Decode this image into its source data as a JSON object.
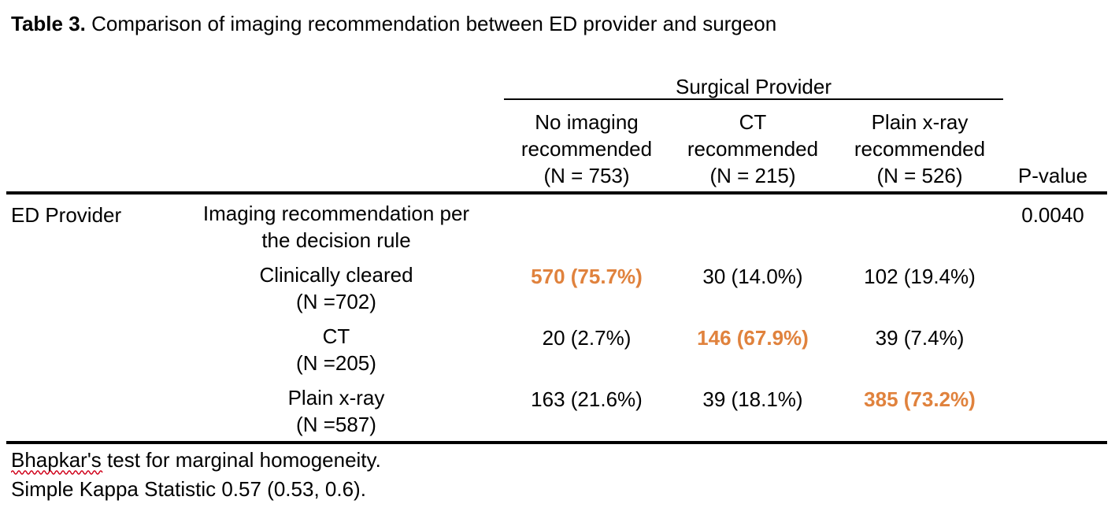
{
  "caption": {
    "label": "Table 3.",
    "text": " Comparison of imaging recommendation between ED provider and surgeon"
  },
  "header": {
    "group_label": "Surgical Provider",
    "columns": [
      {
        "line1": "No imaging",
        "line2": "recommended",
        "line3": "(N = 753)"
      },
      {
        "line1": "CT",
        "line2": "recommended",
        "line3": "(N = 215)"
      },
      {
        "line1": "Plain x-ray",
        "line2": "recommended",
        "line3": "(N = 526)"
      }
    ],
    "pvalue_label": "P-value"
  },
  "body": {
    "row_group": "ED Provider",
    "subheading": {
      "line1": "Imaging recommendation per",
      "line2": "the decision rule"
    },
    "pvalue": "0.0040",
    "rows": [
      {
        "label1": "Clinically cleared",
        "label2": "(N =702)",
        "cells": [
          "570 (75.7%)",
          "30 (14.0%)",
          "102 (19.4%)"
        ],
        "highlight_index": 0
      },
      {
        "label1": "CT",
        "label2": "(N =205)",
        "cells": [
          "20 (2.7%)",
          "146 (67.9%)",
          "39 (7.4%)"
        ],
        "highlight_index": 1
      },
      {
        "label1": "Plain x-ray",
        "label2": "(N =587)",
        "cells": [
          "163 (21.6%)",
          "39 (18.1%)",
          "385 (73.2%)"
        ],
        "highlight_index": 2
      }
    ]
  },
  "footnotes": {
    "line1": "Bhapkar's test for marginal homogeneity.",
    "line2": "Simple Kappa Statistic 0.57 (0.53, 0.6)."
  },
  "colors": {
    "highlight": "#E0823D",
    "spellcheck_underline": "#D0021B"
  }
}
